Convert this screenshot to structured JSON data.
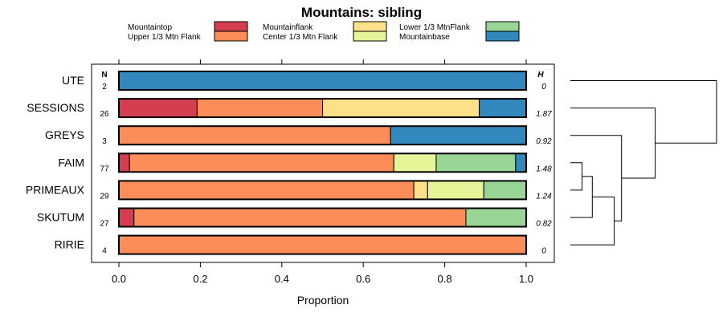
{
  "chart_data": {
    "type": "bar",
    "orientation": "horizontal",
    "stacked": true,
    "title": "Mountains: sibling",
    "xlabel": "Proportion",
    "ylabel": "",
    "xlim": [
      0,
      1
    ],
    "x_ticks": [
      0.0,
      0.2,
      0.4,
      0.6,
      0.8,
      1.0
    ],
    "x_tick_labels": [
      "0.0",
      "0.2",
      "0.4",
      "0.6",
      "0.8",
      "1.0"
    ],
    "n_header": "N",
    "h_header": "H",
    "legend_position": "top",
    "legend": [
      {
        "name": "Mountaintop",
        "color": "#d53e4f"
      },
      {
        "name": "Upper 1/3 Mtn Flank",
        "color": "#fc8d59"
      },
      {
        "name": "Mountainflank",
        "color": "#fee08b"
      },
      {
        "name": "Center 1/3 Mtn Flank",
        "color": "#e6f598"
      },
      {
        "name": "Lower 1/3 MtnFlank",
        "color": "#99d594"
      },
      {
        "name": "Mountainbase",
        "color": "#3288bd"
      }
    ],
    "categories": [
      "UTE",
      "SESSIONS",
      "GREYS",
      "FAIM",
      "PRIMEAUX",
      "SKUTUM",
      "RIRIE"
    ],
    "n": [
      "2",
      "26",
      "3",
      "77",
      "29",
      "27",
      "4"
    ],
    "h": [
      "0",
      "1.87",
      "0.92",
      "1.48",
      "1.24",
      "0.82",
      "0"
    ],
    "series": [
      {
        "name": "Mountaintop",
        "values": [
          0,
          0.192,
          0,
          0.026,
          0,
          0.037,
          0
        ]
      },
      {
        "name": "Upper 1/3 Mtn Flank",
        "values": [
          0,
          0.308,
          0.667,
          0.649,
          0.724,
          0.815,
          1.0
        ]
      },
      {
        "name": "Mountainflank",
        "values": [
          0,
          0.385,
          0,
          0,
          0.034,
          0,
          0
        ]
      },
      {
        "name": "Center 1/3 Mtn Flank",
        "values": [
          0,
          0,
          0,
          0.104,
          0.138,
          0,
          0
        ]
      },
      {
        "name": "Lower 1/3 MtnFlank",
        "values": [
          0,
          0,
          0,
          0.195,
          0.104,
          0.148,
          0
        ]
      },
      {
        "name": "Mountainbase",
        "values": [
          1.0,
          0.115,
          0.333,
          0.026,
          0,
          0,
          0
        ]
      }
    ],
    "dendrogram": {
      "leaves": [
        "UTE",
        "SESSIONS",
        "GREYS",
        "FAIM",
        "PRIMEAUX",
        "SKUTUM",
        "RIRIE"
      ],
      "merges": [
        {
          "a": "FAIM",
          "b": "PRIMEAUX",
          "height": 0.08
        },
        {
          "a": "FAIM+PRIMEAUX",
          "b": "SKUTUM",
          "height": 0.15
        },
        {
          "a": "FAIM+PRIMEAUX+SKUTUM",
          "b": "RIRIE",
          "height": 0.3
        },
        {
          "a": "GREYS",
          "b": "FAIM+PRIMEAUX+SKUTUM+RIRIE",
          "height": 0.35
        },
        {
          "a": "SESSIONS",
          "b": "GREYS+FAIM+PRIMEAUX+SKUTUM+RIRIE",
          "height": 0.58
        },
        {
          "a": "UTE",
          "b": "rest",
          "height": 1.0
        }
      ]
    }
  }
}
